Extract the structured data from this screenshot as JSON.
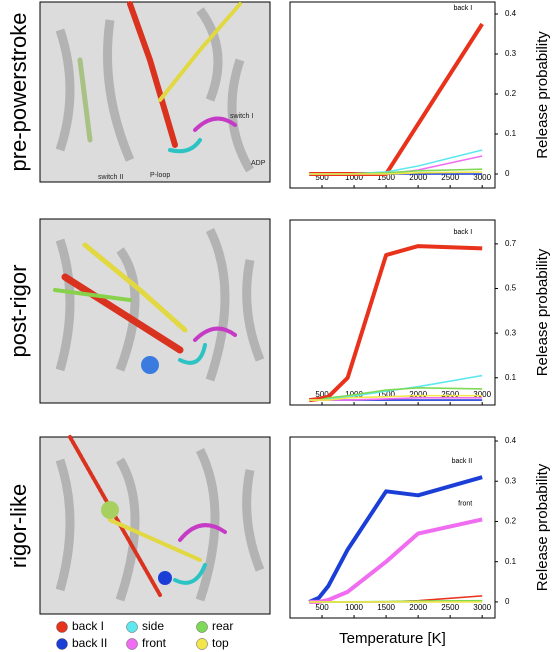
{
  "chart_data": [
    {
      "type": "line",
      "x": [
        300,
        450,
        600,
        900,
        1500,
        2000,
        3000
      ],
      "xlim": [
        0,
        3200
      ],
      "xticks": [
        500,
        1000,
        1500,
        2000,
        2500,
        3000
      ],
      "ylim": [
        -0.035,
        0.43
      ],
      "yticks": [
        0,
        0.1,
        0.2,
        0.3,
        0.4
      ],
      "ylabel": "Release probability",
      "annotations": [
        "back I"
      ],
      "series": [
        {
          "name": "back I",
          "color": "#e8321b",
          "values": [
            0,
            0,
            0,
            0,
            0,
            0.125,
            0.375
          ]
        },
        {
          "name": "back II",
          "color": "#1b3fd6",
          "values": [
            0,
            0,
            0,
            0,
            0,
            0,
            0
          ]
        },
        {
          "name": "side",
          "color": "#5ee8ee",
          "values": [
            0,
            0,
            0,
            0,
            0.005,
            0.02,
            0.06
          ]
        },
        {
          "name": "front",
          "color": "#f06cf0",
          "values": [
            0,
            0,
            0,
            0,
            0,
            0.01,
            0.045
          ]
        },
        {
          "name": "rear",
          "color": "#7ed957",
          "values": [
            0,
            0,
            0,
            0,
            0.003,
            0.008,
            0.012
          ]
        },
        {
          "name": "top",
          "color": "#f2e64a",
          "values": [
            0,
            0,
            0,
            0,
            0,
            0.003,
            0.005
          ]
        }
      ]
    },
    {
      "type": "line",
      "x": [
        300,
        450,
        600,
        900,
        1500,
        2000,
        3000
      ],
      "xlim": [
        0,
        3200
      ],
      "xticks": [
        500,
        1000,
        1500,
        2000,
        2500,
        3000
      ],
      "ylim": [
        -0.022,
        0.807
      ],
      "yticks": [
        0.1,
        0.3,
        0.5,
        0.7
      ],
      "ylabel": "Release probability",
      "annotations": [
        "back I"
      ],
      "series": [
        {
          "name": "back I",
          "color": "#e8321b",
          "values": [
            0,
            0.005,
            0.015,
            0.1,
            0.65,
            0.69,
            0.68
          ]
        },
        {
          "name": "back II",
          "color": "#1b3fd6",
          "values": [
            0,
            0,
            0,
            0,
            0,
            0,
            0
          ]
        },
        {
          "name": "side",
          "color": "#5ee8ee",
          "values": [
            0,
            0,
            0.005,
            0.015,
            0.04,
            0.06,
            0.11
          ]
        },
        {
          "name": "front",
          "color": "#f06cf0",
          "values": [
            0,
            0,
            0,
            0,
            0.005,
            0.01,
            0.01
          ]
        },
        {
          "name": "rear",
          "color": "#7ed957",
          "values": [
            0,
            0,
            0.01,
            0.02,
            0.045,
            0.055,
            0.05
          ]
        },
        {
          "name": "top",
          "color": "#f2e64a",
          "values": [
            0,
            0,
            0,
            0.01,
            0.015,
            0.02,
            0.02
          ]
        }
      ]
    },
    {
      "type": "line",
      "x": [
        300,
        450,
        600,
        900,
        1500,
        2000,
        3000
      ],
      "xlim": [
        0,
        3200
      ],
      "xticks": [
        500,
        1000,
        1500,
        2000,
        2500,
        3000
      ],
      "ylim": [
        -0.04,
        0.41
      ],
      "yticks": [
        0,
        0.1,
        0.2,
        0.3,
        0.4
      ],
      "ylabel": "Release probability",
      "xlabel": "Temperature [K]",
      "annotations": [
        "back II",
        "front"
      ],
      "series": [
        {
          "name": "back I",
          "color": "#e8321b",
          "values": [
            0,
            0,
            0,
            0,
            0,
            0.003,
            0.015
          ]
        },
        {
          "name": "back II",
          "color": "#1b3fd6",
          "values": [
            0,
            0.01,
            0.04,
            0.13,
            0.275,
            0.265,
            0.31
          ]
        },
        {
          "name": "side",
          "color": "#5ee8ee",
          "values": [
            0,
            0,
            0,
            0,
            0,
            0,
            0.002
          ]
        },
        {
          "name": "front",
          "color": "#f06cf0",
          "values": [
            0,
            0,
            0.005,
            0.025,
            0.1,
            0.17,
            0.205
          ]
        },
        {
          "name": "rear",
          "color": "#7ed957",
          "values": [
            0,
            0,
            0,
            0,
            0.001,
            0.002,
            0.003
          ]
        },
        {
          "name": "top",
          "color": "#f2e64a",
          "values": [
            0,
            0,
            0,
            0,
            0,
            0,
            0
          ]
        }
      ]
    }
  ],
  "panels": [
    "pre-powerstroke",
    "post-rigor",
    "rigor-like"
  ],
  "structure_labels": [
    "switch I",
    "switch II",
    "P-loop",
    "ADP"
  ]
}
